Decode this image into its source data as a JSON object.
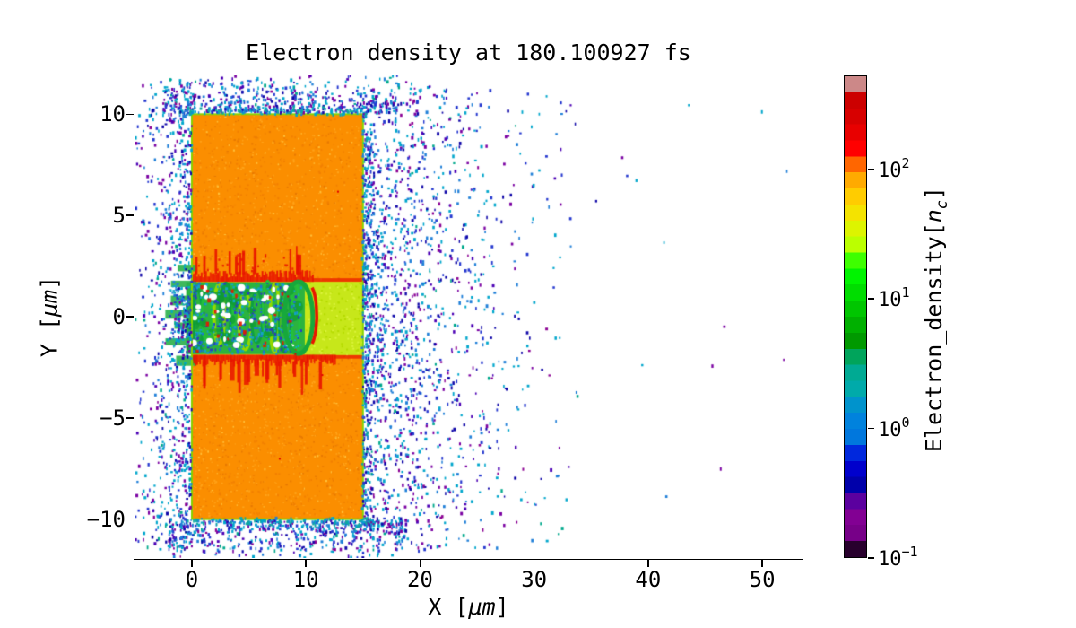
{
  "figure": {
    "title": "Electron_density at 180.100927 fs",
    "background": "#ffffff"
  },
  "axes": {
    "xlabel": {
      "prefix": "X [",
      "italic": "μm",
      "suffix": "]"
    },
    "ylabel": {
      "prefix": "Y [",
      "italic": "μm",
      "suffix": "]"
    },
    "xticks": {
      "values": [
        0,
        10,
        20,
        30,
        40,
        50
      ],
      "labels": [
        "0",
        "10",
        "20",
        "30",
        "40",
        "50"
      ]
    },
    "yticks": {
      "values": [
        10,
        5,
        0,
        -5,
        -10
      ],
      "labels": [
        "10",
        "5",
        "0",
        "−5",
        "−10"
      ]
    }
  },
  "colorbar": {
    "label": {
      "prefix": "Electron_density[",
      "var": "n",
      "sub": "c",
      "suffix": "]"
    },
    "ticks": [
      {
        "base": "10",
        "exp": "2",
        "frac": 0.1944
      },
      {
        "base": "10",
        "exp": "1",
        "frac": 0.463
      },
      {
        "base": "10",
        "exp": "0",
        "frac": 0.7316
      },
      {
        "base": "10",
        "exp": "−1",
        "frac": 1.0
      }
    ],
    "colors_bottom_to_top": [
      "#28002D",
      "#770088",
      "#820093",
      "#5B009F",
      "#0000AA",
      "#0000CC",
      "#0028DD",
      "#0077DD",
      "#0082DD",
      "#0093CC",
      "#00AAAA",
      "#00AA93",
      "#00A45B",
      "#009900",
      "#00B000",
      "#00C600",
      "#00DD00",
      "#00F400",
      "#3EFF00",
      "#BBFF00",
      "#DDF400",
      "#F4E300",
      "#FFCC00",
      "#FFAA00",
      "#FF6600",
      "#FF0000",
      "#E80000",
      "#D70000",
      "#CC0000",
      "#CC8888"
    ]
  },
  "chart_data": {
    "type": "heatmap",
    "title": "Electron_density at 180.100927 fs",
    "time_fs": "180.100927",
    "xlabel": "X [μm]",
    "ylabel": "Y [μm]",
    "colorbar_label": "Electron_density[n_c]",
    "xlim": [
      -4.95,
      53.45
    ],
    "ylim": [
      -11.92,
      11.92
    ],
    "scale": "log",
    "vmin": 0.1,
    "vmax": 530,
    "colormap": "nipy_spectral, ~30 discrete levels",
    "grid": false,
    "regions": [
      {
        "name": "target_slab",
        "x": [
          0,
          15
        ],
        "y": [
          -10,
          10
        ],
        "density_nc": 95,
        "color": "#FB8E00"
      },
      {
        "name": "laser_channel",
        "x": [
          0,
          15
        ],
        "y": [
          -1.9,
          1.72
        ],
        "density_nc": 30,
        "color": "#C7E71A"
      },
      {
        "name": "channel_turbulence_filaments",
        "x": [
          -2.2,
          10.3
        ],
        "y": [
          -1.9,
          1.72
        ],
        "density_nc": "3–50",
        "color": "green/cyan filaments"
      },
      {
        "name": "compressed_channel_walls",
        "x": [
          0,
          12.5
        ],
        "y": "±(1.75–3.3)",
        "density_nc": "300–500",
        "color": "#E81400"
      },
      {
        "name": "bubble_front",
        "x": [
          9.3,
          10.9
        ],
        "y": [
          -1.8,
          1.8
        ],
        "density_nc": "10–300"
      },
      {
        "name": "blowoff_plasma_speckles",
        "x": [
          -5,
          34
        ],
        "y": [
          -12,
          12
        ],
        "density_nc": "0.1–3",
        "color": "blue/cyan/purple dots"
      }
    ],
    "render": {
      "seed": 1337,
      "slab": {
        "x": [
          0,
          15
        ],
        "y": [
          -10,
          10
        ],
        "base": "#FB8E00",
        "noise": {
          "n": 2600,
          "colors": [
            "#F28000",
            "#FFA319",
            "#FFBF38",
            "#E87A00"
          ],
          "weights": [
            0.38,
            0.38,
            0.1,
            0.14
          ]
        },
        "border": "#86D300",
        "red_dots": 5
      },
      "channel": {
        "x": [
          0,
          15
        ],
        "y": [
          -1.9,
          1.72
        ],
        "base": "#C7E71A",
        "noise": {
          "n": 520,
          "colors": [
            "#B5DB00",
            "#DBF33B"
          ],
          "weights": [
            0.5,
            0.5
          ]
        }
      },
      "walls": {
        "color": "#E81400",
        "top_x": [
          0,
          10.6
        ],
        "bot_x": [
          0,
          12.5
        ],
        "band": [
          0.2,
          0.58
        ],
        "spikes": 13,
        "spike_len": [
          0.5,
          1.4
        ],
        "thin_ridge_x": [
          10.6,
          15
        ],
        "drips": 7,
        "top_dots": 26
      },
      "turb": {
        "x": [
          -0.5,
          9.9
        ],
        "y": [
          -1.85,
          1.7
        ],
        "base": "#2CB33F",
        "rings": {
          "n": 11,
          "x0": 0.55,
          "dx": 0.85,
          "rx": [
            0.32,
            0.55
          ],
          "ry": [
            1.15,
            1.75
          ],
          "colors": [
            "#0EA041",
            "#23C13B",
            "#93D800"
          ],
          "lw": [
            2.5,
            4.5
          ]
        },
        "dark_blobs": 32,
        "dark_color": "#0E9A35",
        "cyan_dots": {
          "n": 560,
          "colors": [
            "#12A6C6",
            "#1F72D2",
            "#2A3DBE"
          ],
          "weights": [
            0.45,
            0.3,
            0.25
          ]
        },
        "white_voids": 42,
        "red_bits": 24,
        "front": {
          "cx": 9.35,
          "cy": -0.05,
          "rx": 1.25,
          "ry": 1.78,
          "color": "#17A83C",
          "red_arc": {
            "cx": 10.2,
            "cy": 0.05,
            "rx": 0.75,
            "ry": 1.55,
            "color": "#E81400"
          }
        },
        "tendrils": {
          "ys": [
            2.35,
            1.6,
            0.85,
            0.15,
            -0.55,
            -1.3,
            -2.2
          ],
          "len": [
            1.1,
            2.6
          ],
          "color": "#2AB04A"
        }
      },
      "speckle_palette": {
        "colors": [
          "#00A6CC",
          "#1F7FD8",
          "#2437CF",
          "#0F06A8",
          "#7A00A2",
          "#4B00B5",
          "#8B0093",
          "#00A98C"
        ],
        "weights": [
          0.26,
          0.17,
          0.17,
          0.12,
          0.13,
          0.08,
          0.04,
          0.03
        ]
      },
      "teal_palette": {
        "colors": [
          "#0FA8A0",
          "#00A6CC",
          "#1F7FD8"
        ],
        "weights": [
          0.5,
          0.3,
          0.2
        ]
      },
      "speckle_clusters": [
        {
          "x": [
            -4.95,
            0
          ],
          "y": [
            -11.5,
            11.6
          ],
          "n": 880,
          "decay": {
            "axis": "x",
            "from": "max",
            "L": 2.2
          }
        },
        {
          "x": [
            -2.5,
            18.0
          ],
          "y": [
            10.05,
            11.9
          ],
          "n": 540,
          "decay": {
            "axis": "y",
            "from": "min",
            "L": 0.85
          }
        },
        {
          "x": [
            -2.5,
            18.5
          ],
          "y": [
            -11.9,
            -10.05
          ],
          "n": 560,
          "decay": {
            "axis": "y",
            "from": "max",
            "L": 0.9
          }
        },
        {
          "x": [
            15.0,
            17.8
          ],
          "y": [
            -10.6,
            10.6
          ],
          "n": 700,
          "decay": {
            "axis": "x",
            "from": "min",
            "L": 1.2
          }
        },
        {
          "x": [
            17.8,
            34.0
          ],
          "y": [
            -11.6,
            11.6
          ],
          "n": 950,
          "decay": {
            "axis": "x",
            "from": "min",
            "L": 5.0
          }
        },
        {
          "x": [
            15.0,
            21.5
          ],
          "y": [
            -5,
            5
          ],
          "n": 170,
          "decay": {
            "axis": "x",
            "from": "min",
            "L": 2.5
          }
        },
        {
          "x": [
            34.0,
            53.0
          ],
          "y": [
            -11,
            11
          ],
          "n": 14,
          "decay": null
        },
        {
          "x": [
            -0.5,
            15.5
          ],
          "y": [
            9.95,
            10.35
          ],
          "n": 95,
          "decay": null,
          "teal": true
        },
        {
          "x": [
            -0.5,
            15.8
          ],
          "y": [
            -10.35,
            -9.95
          ],
          "n": 95,
          "decay": null,
          "teal": true
        },
        {
          "x": [
            14.9,
            15.45
          ],
          "y": [
            -10.3,
            10.3
          ],
          "n": 85,
          "decay": null,
          "teal": true
        }
      ]
    }
  }
}
